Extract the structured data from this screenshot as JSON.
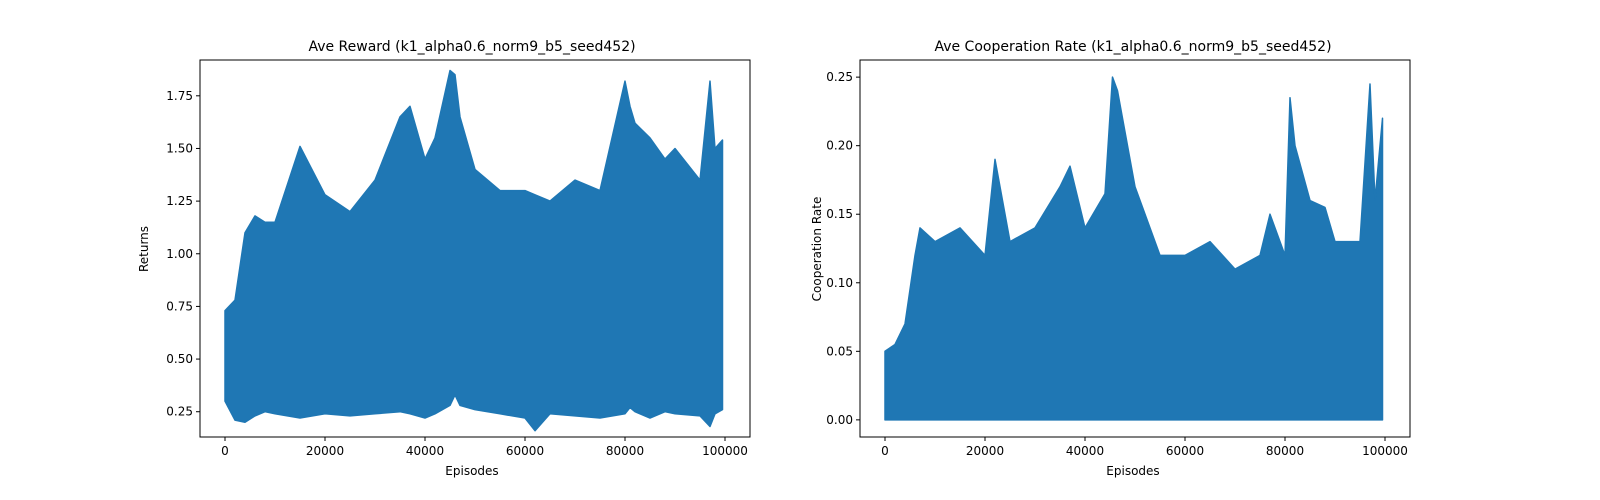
{
  "chart_data": [
    {
      "type": "line",
      "title": "Ave Reward (k1_alpha0.6_norm9_b5_seed452)",
      "xlabel": "Episodes",
      "ylabel": "Returns",
      "xlim": [
        -5000,
        105000
      ],
      "ylim": [
        0.13,
        1.92
      ],
      "xticks": [
        0,
        20000,
        40000,
        60000,
        80000,
        100000
      ],
      "xtick_labels": [
        "0",
        "20000",
        "40000",
        "60000",
        "80000",
        "100000"
      ],
      "yticks": [
        0.25,
        0.5,
        0.75,
        1.0,
        1.25,
        1.5,
        1.75
      ],
      "ytick_labels": [
        "0.25",
        "0.50",
        "0.75",
        "1.00",
        "1.25",
        "1.50",
        "1.75"
      ],
      "grid": false,
      "series_color": "#1f77b4",
      "series": [
        {
          "x": [
            0,
            2000,
            4000,
            6000,
            8000,
            10000,
            15000,
            20000,
            25000,
            30000,
            35000,
            37000,
            40000,
            42000,
            45000,
            46000,
            47000,
            50000,
            55000,
            60000,
            62000,
            65000,
            70000,
            75000,
            80000,
            81000,
            82000,
            85000,
            88000,
            90000,
            95000,
            97000,
            98000,
            99500
          ],
          "upper": [
            0.73,
            0.78,
            1.1,
            1.18,
            1.15,
            1.15,
            1.51,
            1.28,
            1.2,
            1.35,
            1.65,
            1.7,
            1.45,
            1.55,
            1.87,
            1.85,
            1.65,
            1.4,
            1.3,
            1.3,
            1.28,
            1.25,
            1.35,
            1.3,
            1.82,
            1.7,
            1.62,
            1.55,
            1.45,
            1.5,
            1.35,
            1.82,
            1.5,
            1.54
          ],
          "lower": [
            0.3,
            0.21,
            0.2,
            0.23,
            0.25,
            0.24,
            0.22,
            0.24,
            0.23,
            0.24,
            0.25,
            0.24,
            0.22,
            0.24,
            0.28,
            0.33,
            0.28,
            0.26,
            0.24,
            0.22,
            0.16,
            0.24,
            0.23,
            0.22,
            0.24,
            0.27,
            0.25,
            0.22,
            0.25,
            0.24,
            0.23,
            0.18,
            0.24,
            0.26
          ]
        }
      ]
    },
    {
      "type": "line",
      "title": "Ave Cooperation Rate (k1_alpha0.6_norm9_b5_seed452)",
      "xlabel": "Episodes",
      "ylabel": "Cooperation Rate",
      "xlim": [
        -5000,
        105000
      ],
      "ylim": [
        -0.0125,
        0.2625
      ],
      "xticks": [
        0,
        20000,
        40000,
        60000,
        80000,
        100000
      ],
      "xtick_labels": [
        "0",
        "20000",
        "40000",
        "60000",
        "80000",
        "100000"
      ],
      "yticks": [
        0.0,
        0.05,
        0.1,
        0.15,
        0.2,
        0.25
      ],
      "ytick_labels": [
        "0.00",
        "0.05",
        "0.10",
        "0.15",
        "0.20",
        "0.25"
      ],
      "grid": false,
      "series_color": "#1f77b4",
      "series": [
        {
          "x": [
            0,
            2000,
            4000,
            6000,
            7000,
            10000,
            15000,
            20000,
            22000,
            25000,
            30000,
            35000,
            37000,
            40000,
            44000,
            45500,
            46500,
            50000,
            55000,
            60000,
            65000,
            70000,
            75000,
            77000,
            80000,
            81000,
            82000,
            85000,
            88000,
            90000,
            95000,
            97000,
            98000,
            99500
          ],
          "upper": [
            0.05,
            0.055,
            0.07,
            0.12,
            0.14,
            0.13,
            0.14,
            0.12,
            0.19,
            0.13,
            0.14,
            0.17,
            0.185,
            0.14,
            0.165,
            0.25,
            0.24,
            0.17,
            0.12,
            0.12,
            0.13,
            0.11,
            0.12,
            0.15,
            0.12,
            0.235,
            0.2,
            0.16,
            0.155,
            0.13,
            0.13,
            0.245,
            0.16,
            0.22
          ],
          "lower": [
            0.0,
            0.0,
            0.0,
            0.0,
            0.0,
            0.0,
            0.0,
            0.0,
            0.0,
            0.0,
            0.0,
            0.0,
            0.0,
            0.0,
            0.0,
            0.0,
            0.0,
            0.0,
            0.0,
            0.0,
            0.0,
            0.0,
            0.0,
            0.0,
            0.0,
            0.0,
            0.0,
            0.0,
            0.0,
            0.0,
            0.0,
            0.0,
            0.0,
            0.0
          ]
        }
      ]
    }
  ]
}
